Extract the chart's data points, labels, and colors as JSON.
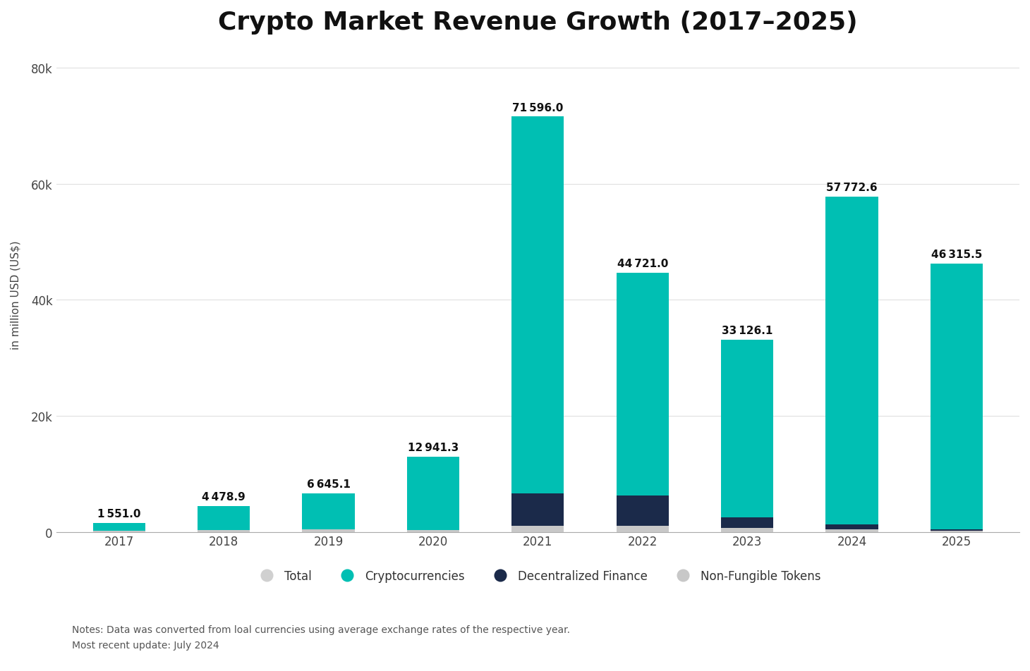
{
  "title": "Crypto Market Revenue Growth (2017–2025)",
  "ylabel": "in million USD (US$)",
  "years": [
    2017,
    2018,
    2019,
    2020,
    2021,
    2022,
    2023,
    2024,
    2025
  ],
  "total_labels": [
    "1 551.0",
    "4 478.9",
    "6 645.1",
    "12 941.3",
    "71 596.0",
    "44 721.0",
    "33 126.1",
    "57 772.6",
    "46 315.5"
  ],
  "totals": [
    1551.0,
    4478.9,
    6645.1,
    12941.3,
    71596.0,
    44721.0,
    33126.1,
    57772.6,
    46315.5
  ],
  "crypto": [
    1400.0,
    4200.0,
    6200.0,
    12600.0,
    65000.0,
    38500.0,
    30600.0,
    56500.0,
    45900.0
  ],
  "defi": [
    0.0,
    0.0,
    0.0,
    0.0,
    5600.0,
    5200.0,
    1900.0,
    800.0,
    200.0
  ],
  "nft": [
    151.0,
    278.9,
    445.1,
    341.3,
    996.0,
    1021.0,
    626.1,
    472.6,
    215.5
  ],
  "color_crypto": "#00BFB3",
  "color_defi": "#1B2A4A",
  "color_nft": "#C8C8C8",
  "color_total_legend": "#D0D0D0",
  "background_color": "#FFFFFF",
  "ylim": [
    0,
    82000
  ],
  "yticks": [
    0,
    20000,
    40000,
    60000,
    80000
  ],
  "ytick_labels": [
    "0",
    "20k",
    "40k",
    "60k",
    "80k"
  ],
  "legend_labels": [
    "Total",
    "Cryptocurrencies",
    "Decentralized Finance",
    "Non-Fungible Tokens"
  ],
  "notes": "Notes: Data was converted from loal currencies using average exchange rates of the respective year.",
  "update": "Most recent update: July 2024",
  "title_fontsize": 26,
  "label_fontsize": 11,
  "anno_fontsize": 11,
  "tick_fontsize": 12,
  "bar_width": 0.5
}
